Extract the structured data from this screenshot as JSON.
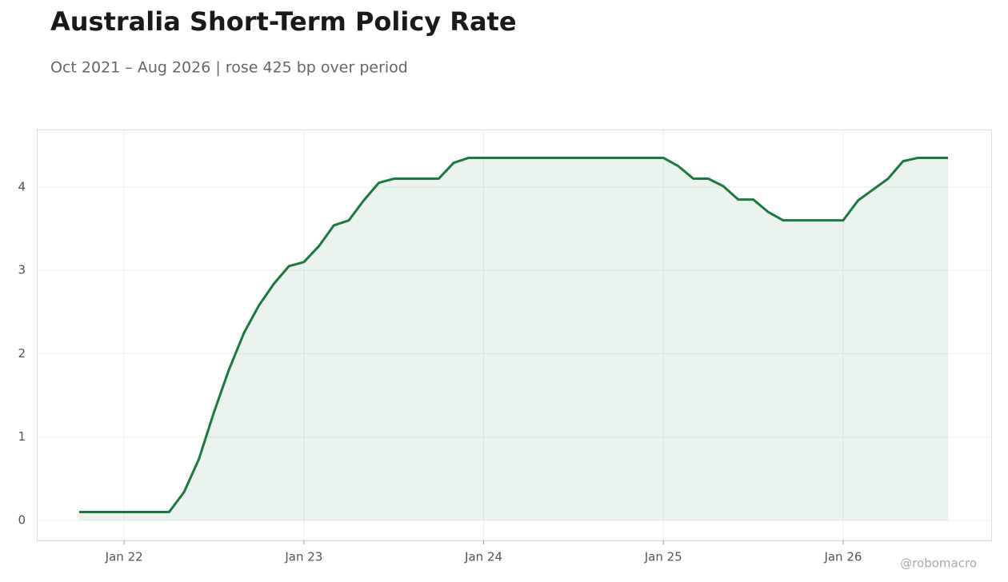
{
  "chart_data": {
    "type": "line",
    "title": "Australia Short-Term Policy Rate",
    "subtitle": "Oct 2021 – Aug 2026 | rose 425 bp over period",
    "annotation": "@robomacro",
    "x": [
      "2021-10",
      "2021-11",
      "2021-12",
      "2022-01",
      "2022-02",
      "2022-03",
      "2022-04",
      "2022-05",
      "2022-06",
      "2022-07",
      "2022-08",
      "2022-09",
      "2022-10",
      "2022-11",
      "2022-12",
      "2023-01",
      "2023-02",
      "2023-03",
      "2023-04",
      "2023-05",
      "2023-06",
      "2023-07",
      "2023-08",
      "2023-09",
      "2023-10",
      "2023-11",
      "2023-12",
      "2024-01",
      "2024-02",
      "2024-03",
      "2024-04",
      "2024-05",
      "2024-06",
      "2024-07",
      "2024-08",
      "2024-09",
      "2024-10",
      "2024-11",
      "2024-12",
      "2025-01",
      "2025-02",
      "2025-03",
      "2025-04",
      "2025-05",
      "2025-06",
      "2025-07",
      "2025-08",
      "2025-09",
      "2025-10",
      "2025-11",
      "2025-12",
      "2026-01",
      "2026-02",
      "2026-03",
      "2026-04",
      "2026-05",
      "2026-06",
      "2026-07",
      "2026-08"
    ],
    "values": [
      0.1,
      0.1,
      0.1,
      0.1,
      0.1,
      0.1,
      0.1,
      0.34,
      0.74,
      1.3,
      1.81,
      2.25,
      2.58,
      2.84,
      3.05,
      3.1,
      3.29,
      3.54,
      3.6,
      3.84,
      4.05,
      4.1,
      4.1,
      4.1,
      4.1,
      4.29,
      4.35,
      4.35,
      4.35,
      4.35,
      4.35,
      4.35,
      4.35,
      4.35,
      4.35,
      4.35,
      4.35,
      4.35,
      4.35,
      4.35,
      4.25,
      4.1,
      4.1,
      4.01,
      3.85,
      3.85,
      3.7,
      3.6,
      3.6,
      3.6,
      3.6,
      3.6,
      3.84,
      3.97,
      4.1,
      4.31,
      4.35,
      4.35,
      4.35
    ],
    "color": "#1a7a3c",
    "area": true,
    "xticks": [
      {
        "value": "2022-01",
        "label": "Jan 22"
      },
      {
        "value": "2023-01",
        "label": "Jan 23"
      },
      {
        "value": "2024-01",
        "label": "Jan 24"
      },
      {
        "value": "2025-01",
        "label": "Jan 25"
      },
      {
        "value": "2026-01",
        "label": "Jan 26"
      }
    ],
    "ylim": [
      -0.24,
      4.69
    ],
    "yticks": [
      0,
      1,
      2,
      3,
      4
    ],
    "grid": true
  }
}
